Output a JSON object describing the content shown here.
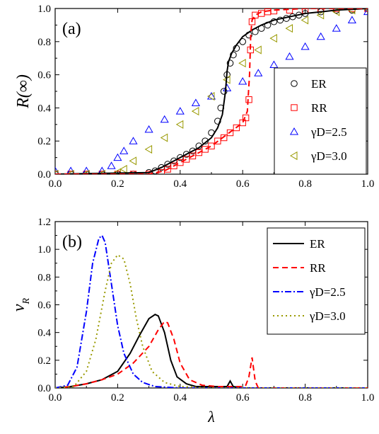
{
  "chart_data": [
    {
      "type": "scatter",
      "panel_label": "(a)",
      "xlabel": "",
      "ylabel": "R(∞)",
      "xlim": [
        0.0,
        1.0
      ],
      "ylim": [
        0.0,
        1.0
      ],
      "xticks": [
        "0.0",
        "0.2",
        "0.4",
        "0.6",
        "0.8",
        "1.0"
      ],
      "yticks": [
        "0.0",
        "0.2",
        "0.4",
        "0.6",
        "0.8",
        "1.0"
      ],
      "legend_position": "bottom-right",
      "series": [
        {
          "name": "ER",
          "marker": "circle",
          "color": "#000000",
          "x": [
            0.0,
            0.05,
            0.1,
            0.15,
            0.2,
            0.25,
            0.3,
            0.32,
            0.34,
            0.36,
            0.38,
            0.4,
            0.42,
            0.44,
            0.46,
            0.48,
            0.5,
            0.52,
            0.53,
            0.54,
            0.55,
            0.56,
            0.57,
            0.58,
            0.6,
            0.62,
            0.64,
            0.66,
            0.68,
            0.7,
            0.72,
            0.74,
            0.76,
            0.78,
            0.8,
            0.85,
            0.9,
            0.95,
            1.0
          ],
          "y": [
            0.0,
            0.0,
            0.0,
            0.0,
            0.0,
            0.0,
            0.01,
            0.02,
            0.04,
            0.06,
            0.08,
            0.1,
            0.12,
            0.14,
            0.17,
            0.2,
            0.25,
            0.32,
            0.4,
            0.5,
            0.6,
            0.67,
            0.72,
            0.76,
            0.8,
            0.84,
            0.86,
            0.88,
            0.9,
            0.92,
            0.93,
            0.94,
            0.95,
            0.96,
            0.97,
            0.98,
            0.99,
            0.99,
            1.0
          ]
        },
        {
          "name": "RR",
          "marker": "square",
          "color": "#ff0000",
          "x": [
            0.0,
            0.05,
            0.1,
            0.15,
            0.2,
            0.25,
            0.3,
            0.34,
            0.36,
            0.38,
            0.4,
            0.42,
            0.44,
            0.46,
            0.48,
            0.5,
            0.52,
            0.54,
            0.56,
            0.58,
            0.6,
            0.61,
            0.62,
            0.625,
            0.63,
            0.64,
            0.66,
            0.68,
            0.7,
            0.75,
            0.8,
            0.85,
            0.9,
            0.95,
            1.0
          ],
          "y": [
            0.0,
            0.0,
            0.0,
            0.0,
            0.0,
            0.0,
            0.0,
            0.01,
            0.03,
            0.05,
            0.07,
            0.09,
            0.11,
            0.13,
            0.15,
            0.17,
            0.2,
            0.22,
            0.25,
            0.28,
            0.31,
            0.34,
            0.45,
            0.75,
            0.92,
            0.96,
            0.97,
            0.98,
            0.985,
            0.99,
            0.99,
            1.0,
            1.0,
            1.0,
            1.0
          ]
        },
        {
          "name": "γD=2.5",
          "marker": "triangle-up",
          "color": "#0000ff",
          "x": [
            0.0,
            0.05,
            0.1,
            0.15,
            0.18,
            0.2,
            0.22,
            0.25,
            0.3,
            0.35,
            0.4,
            0.45,
            0.5,
            0.55,
            0.6,
            0.65,
            0.7,
            0.75,
            0.8,
            0.85,
            0.9,
            0.95,
            1.0
          ],
          "y": [
            0.02,
            0.02,
            0.02,
            0.02,
            0.05,
            0.1,
            0.14,
            0.2,
            0.27,
            0.33,
            0.38,
            0.43,
            0.47,
            0.52,
            0.56,
            0.61,
            0.66,
            0.71,
            0.77,
            0.83,
            0.88,
            0.93,
            0.98
          ]
        },
        {
          "name": "γD=3.0",
          "marker": "triangle-left",
          "color": "#999900",
          "x": [
            0.0,
            0.05,
            0.1,
            0.15,
            0.2,
            0.22,
            0.25,
            0.3,
            0.35,
            0.4,
            0.45,
            0.5,
            0.55,
            0.6,
            0.65,
            0.7,
            0.75,
            0.8,
            0.85,
            0.9,
            0.95,
            1.0
          ],
          "y": [
            0.0,
            0.0,
            0.0,
            0.0,
            0.01,
            0.03,
            0.08,
            0.15,
            0.22,
            0.3,
            0.38,
            0.47,
            0.57,
            0.67,
            0.75,
            0.82,
            0.88,
            0.93,
            0.96,
            0.98,
            0.99,
            1.0
          ]
        }
      ],
      "fit_lines": [
        {
          "series": "ER",
          "style": "solid",
          "color": "#000000",
          "x": [
            0.0,
            0.3,
            0.34,
            0.38,
            0.42,
            0.46,
            0.5,
            0.52,
            0.535,
            0.545,
            0.55,
            0.555,
            0.565,
            0.58,
            0.6,
            0.63,
            0.66,
            0.7,
            0.75,
            0.8,
            0.85,
            0.9,
            1.0
          ],
          "y": [
            0.0,
            0.01,
            0.04,
            0.08,
            0.12,
            0.16,
            0.22,
            0.28,
            0.36,
            0.5,
            0.62,
            0.68,
            0.73,
            0.78,
            0.83,
            0.87,
            0.9,
            0.93,
            0.95,
            0.97,
            0.98,
            0.99,
            1.0
          ]
        },
        {
          "series": "RR",
          "style": "dashed",
          "color": "#ff0000",
          "x": [
            0.0,
            0.3,
            0.35,
            0.4,
            0.45,
            0.5,
            0.55,
            0.6,
            0.615,
            0.622,
            0.626,
            0.63,
            0.64,
            0.66,
            0.7,
            0.8,
            1.0
          ],
          "y": [
            0.0,
            0.0,
            0.02,
            0.07,
            0.12,
            0.17,
            0.24,
            0.31,
            0.38,
            0.6,
            0.85,
            0.93,
            0.96,
            0.98,
            0.99,
            1.0,
            1.0
          ]
        }
      ]
    },
    {
      "type": "line",
      "panel_label": "(b)",
      "xlabel": "λ",
      "ylabel": "νR",
      "ylabel_main": "ν",
      "ylabel_sub": "R",
      "xlim": [
        0.0,
        1.0
      ],
      "ylim": [
        0.0,
        1.2
      ],
      "xticks": [
        "0.0",
        "0.2",
        "0.4",
        "0.6",
        "0.8",
        "1.0"
      ],
      "yticks": [
        "0.0",
        "0.2",
        "0.4",
        "0.6",
        "0.8",
        "1.0",
        "1.2"
      ],
      "legend_position": "top-right",
      "series": [
        {
          "name": "ER",
          "style": "solid",
          "color": "#000000",
          "x": [
            0.0,
            0.05,
            0.1,
            0.15,
            0.2,
            0.24,
            0.27,
            0.3,
            0.32,
            0.33,
            0.35,
            0.37,
            0.39,
            0.42,
            0.45,
            0.5,
            0.55,
            0.56,
            0.57,
            0.6,
            0.7,
            1.0
          ],
          "y": [
            0.0,
            0.01,
            0.03,
            0.06,
            0.12,
            0.25,
            0.38,
            0.5,
            0.53,
            0.52,
            0.4,
            0.2,
            0.08,
            0.03,
            0.01,
            0.01,
            0.01,
            0.05,
            0.01,
            0.0,
            0.0,
            0.0
          ]
        },
        {
          "name": "RR",
          "style": "dashed",
          "color": "#ff0000",
          "x": [
            0.0,
            0.05,
            0.1,
            0.15,
            0.2,
            0.25,
            0.3,
            0.33,
            0.35,
            0.36,
            0.38,
            0.4,
            0.43,
            0.47,
            0.52,
            0.58,
            0.6,
            0.61,
            0.62,
            0.63,
            0.64,
            0.65,
            0.7,
            1.0
          ],
          "y": [
            0.0,
            0.01,
            0.03,
            0.06,
            0.1,
            0.18,
            0.3,
            0.42,
            0.48,
            0.47,
            0.35,
            0.18,
            0.06,
            0.02,
            0.01,
            0.01,
            0.01,
            0.02,
            0.08,
            0.22,
            0.05,
            0.0,
            0.0,
            0.0
          ]
        },
        {
          "name": "γD=2.5",
          "style": "dashdot",
          "color": "#0000ff",
          "x": [
            0.0,
            0.04,
            0.07,
            0.1,
            0.12,
            0.14,
            0.15,
            0.16,
            0.18,
            0.2,
            0.22,
            0.25,
            0.28,
            0.32,
            0.4,
            1.0
          ],
          "y": [
            0.0,
            0.02,
            0.15,
            0.55,
            0.9,
            1.08,
            1.1,
            1.05,
            0.75,
            0.45,
            0.25,
            0.1,
            0.04,
            0.01,
            0.0,
            0.0
          ]
        },
        {
          "name": "γD=3.0",
          "style": "dotted",
          "color": "#999900",
          "x": [
            0.0,
            0.06,
            0.1,
            0.13,
            0.16,
            0.18,
            0.2,
            0.22,
            0.24,
            0.26,
            0.28,
            0.31,
            0.35,
            0.4,
            0.5,
            1.0
          ],
          "y": [
            0.0,
            0.01,
            0.12,
            0.35,
            0.7,
            0.9,
            0.96,
            0.93,
            0.75,
            0.5,
            0.3,
            0.12,
            0.04,
            0.01,
            0.0,
            0.0
          ]
        }
      ]
    }
  ]
}
